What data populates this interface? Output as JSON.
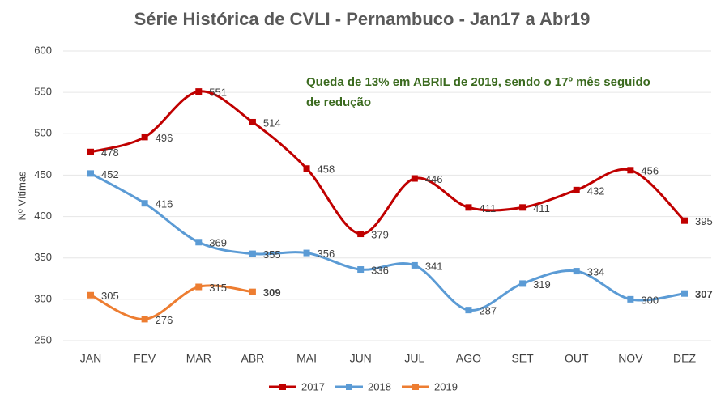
{
  "chart_data": {
    "type": "line",
    "title": "Série Histórica de CVLI - Pernambuco - Jan17 a Abr19",
    "annotation_lines": [
      "Queda de 13% em ABRIL  de 2019, sendo o 17º mês seguido",
      "de redução"
    ],
    "ylabel": "Nº Vítimas",
    "categories": [
      "JAN",
      "FEV",
      "MAR",
      "ABR",
      "MAI",
      "JUN",
      "JUL",
      "AGO",
      "SET",
      "OUT",
      "NOV",
      "DEZ"
    ],
    "series": [
      {
        "name": "2017",
        "color": "#c00000",
        "values": [
          478,
          496,
          551,
          514,
          458,
          379,
          446,
          411,
          411,
          432,
          456,
          395
        ]
      },
      {
        "name": "2018",
        "color": "#5b9bd5",
        "values": [
          452,
          416,
          369,
          355,
          356,
          336,
          341,
          287,
          319,
          334,
          300,
          307
        ]
      },
      {
        "name": "2019",
        "color": "#ed7d31",
        "values": [
          305,
          276,
          315,
          309,
          null,
          null,
          null,
          null,
          null,
          null,
          null,
          null
        ]
      }
    ],
    "ylim": [
      250,
      600
    ],
    "yticks": [
      250,
      300,
      350,
      400,
      450,
      500,
      550,
      600
    ],
    "grid": true,
    "legend": "bottom"
  }
}
